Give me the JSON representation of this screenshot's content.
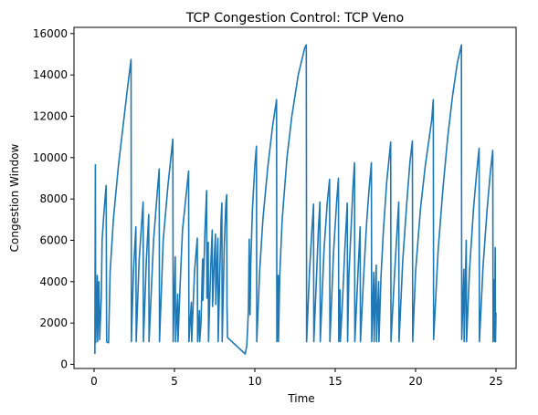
{
  "chart_data": {
    "type": "line",
    "title": "TCP Congestion Control: TCP Veno",
    "xlabel": "Time",
    "ylabel": "Congestion Window",
    "xlim": [
      -1.25,
      26.25
    ],
    "ylim": [
      -200,
      16300
    ],
    "xticks": [
      0,
      5,
      10,
      15,
      20,
      25
    ],
    "yticks": [
      0,
      2000,
      4000,
      6000,
      8000,
      10000,
      12000,
      14000,
      16000
    ],
    "xtick_labels": [
      "0",
      "5",
      "10",
      "15",
      "20",
      "25"
    ],
    "ytick_labels": [
      "0",
      "2000",
      "4000",
      "6000",
      "8000",
      "10000",
      "12000",
      "14000",
      "16000"
    ],
    "grid": false,
    "color": "#1f77b4",
    "series": [
      {
        "values": [
          [
            0.05,
            500
          ],
          [
            0.08,
            9650
          ],
          [
            0.1,
            1050
          ],
          [
            0.2,
            4300
          ],
          [
            0.22,
            1100
          ],
          [
            0.3,
            4000
          ],
          [
            0.35,
            1200
          ],
          [
            0.45,
            3300
          ],
          [
            0.5,
            6000
          ],
          [
            0.6,
            7200
          ],
          [
            0.75,
            8650
          ],
          [
            0.78,
            1100
          ],
          [
            0.85,
            1050
          ],
          [
            0.9,
            1050
          ],
          [
            1.0,
            4500
          ],
          [
            1.2,
            7000
          ],
          [
            1.5,
            9500
          ],
          [
            1.8,
            11500
          ],
          [
            2.1,
            13500
          ],
          [
            2.3,
            14750
          ],
          [
            2.32,
            1100
          ],
          [
            2.45,
            4500
          ],
          [
            2.6,
            6650
          ],
          [
            2.62,
            1100
          ],
          [
            2.8,
            5000
          ],
          [
            3.0,
            7300
          ],
          [
            3.05,
            7850
          ],
          [
            3.07,
            1100
          ],
          [
            3.25,
            5000
          ],
          [
            3.4,
            7250
          ],
          [
            3.42,
            1100
          ],
          [
            3.7,
            6000
          ],
          [
            3.95,
            8500
          ],
          [
            4.05,
            9450
          ],
          [
            4.07,
            1100
          ],
          [
            4.3,
            6000
          ],
          [
            4.6,
            8700
          ],
          [
            4.9,
            10900
          ],
          [
            4.92,
            1100
          ],
          [
            5.05,
            5200
          ],
          [
            5.07,
            1100
          ],
          [
            5.2,
            3400
          ],
          [
            5.22,
            1100
          ],
          [
            5.35,
            3800
          ],
          [
            5.5,
            6500
          ],
          [
            5.7,
            8000
          ],
          [
            5.88,
            9350
          ],
          [
            5.9,
            1100
          ],
          [
            6.05,
            3000
          ],
          [
            6.07,
            1100
          ],
          [
            6.25,
            4500
          ],
          [
            6.42,
            6100
          ],
          [
            6.44,
            1100
          ],
          [
            6.55,
            2600
          ],
          [
            6.57,
            1100
          ],
          [
            6.65,
            2000
          ],
          [
            6.75,
            5100
          ],
          [
            6.77,
            3100
          ],
          [
            6.9,
            6500
          ],
          [
            7.0,
            8400
          ],
          [
            7.02,
            3200
          ],
          [
            7.1,
            5900
          ],
          [
            7.12,
            1100
          ],
          [
            7.25,
            4600
          ],
          [
            7.35,
            6500
          ],
          [
            7.37,
            2800
          ],
          [
            7.5,
            5500
          ],
          [
            7.55,
            6300
          ],
          [
            7.57,
            2900
          ],
          [
            7.7,
            6100
          ],
          [
            7.72,
            1100
          ],
          [
            7.85,
            5400
          ],
          [
            7.9,
            7000
          ],
          [
            7.95,
            7800
          ],
          [
            7.97,
            1100
          ],
          [
            8.1,
            5800
          ],
          [
            8.2,
            7800
          ],
          [
            8.25,
            8200
          ],
          [
            8.27,
            2800
          ],
          [
            8.3,
            1300
          ],
          [
            9.4,
            500
          ],
          [
            9.5,
            900
          ],
          [
            9.6,
            2600
          ],
          [
            9.65,
            6050
          ],
          [
            9.7,
            2400
          ],
          [
            9.75,
            5000
          ],
          [
            9.85,
            7500
          ],
          [
            10.0,
            9600
          ],
          [
            10.1,
            10550
          ],
          [
            10.12,
            1100
          ],
          [
            10.3,
            4500
          ],
          [
            10.5,
            7000
          ],
          [
            10.8,
            9500
          ],
          [
            11.1,
            11500
          ],
          [
            11.35,
            12800
          ],
          [
            11.37,
            1100
          ],
          [
            11.45,
            4300
          ],
          [
            11.47,
            1100
          ],
          [
            11.55,
            4300
          ],
          [
            11.7,
            7000
          ],
          [
            12.0,
            10000
          ],
          [
            12.3,
            12000
          ],
          [
            12.7,
            14000
          ],
          [
            13.1,
            15300
          ],
          [
            13.2,
            15450
          ],
          [
            13.22,
            1100
          ],
          [
            13.4,
            4500
          ],
          [
            13.55,
            6500
          ],
          [
            13.65,
            7750
          ],
          [
            13.67,
            1100
          ],
          [
            13.85,
            4500
          ],
          [
            13.95,
            6500
          ],
          [
            14.05,
            7850
          ],
          [
            14.07,
            1100
          ],
          [
            14.3,
            5500
          ],
          [
            14.5,
            7800
          ],
          [
            14.65,
            8950
          ],
          [
            14.67,
            1100
          ],
          [
            14.9,
            5500
          ],
          [
            15.1,
            8000
          ],
          [
            15.2,
            9000
          ],
          [
            15.22,
            1100
          ],
          [
            15.3,
            3600
          ],
          [
            15.32,
            1100
          ],
          [
            15.45,
            3000
          ],
          [
            15.6,
            5600
          ],
          [
            15.75,
            7800
          ],
          [
            15.77,
            1100
          ],
          [
            15.85,
            4300
          ],
          [
            16.0,
            6800
          ],
          [
            16.1,
            8500
          ],
          [
            16.2,
            9750
          ],
          [
            16.22,
            1100
          ],
          [
            16.45,
            5000
          ],
          [
            16.55,
            6650
          ],
          [
            16.57,
            1100
          ],
          [
            16.75,
            4000
          ],
          [
            16.95,
            6800
          ],
          [
            17.1,
            8400
          ],
          [
            17.25,
            9750
          ],
          [
            17.27,
            1100
          ],
          [
            17.4,
            4450
          ],
          [
            17.42,
            1100
          ],
          [
            17.5,
            3600
          ],
          [
            17.55,
            4800
          ],
          [
            17.57,
            1100
          ],
          [
            17.7,
            4000
          ],
          [
            17.72,
            1100
          ],
          [
            17.85,
            4300
          ],
          [
            18.0,
            6500
          ],
          [
            18.2,
            8800
          ],
          [
            18.45,
            10750
          ],
          [
            18.47,
            1100
          ],
          [
            18.7,
            4500
          ],
          [
            18.85,
            6500
          ],
          [
            18.95,
            7850
          ],
          [
            18.97,
            1100
          ],
          [
            19.2,
            5000
          ],
          [
            19.45,
            7800
          ],
          [
            19.65,
            9800
          ],
          [
            19.8,
            10800
          ],
          [
            19.82,
            1100
          ],
          [
            20.0,
            4500
          ],
          [
            20.3,
            7500
          ],
          [
            20.6,
            9600
          ],
          [
            21.0,
            11800
          ],
          [
            21.1,
            12800
          ],
          [
            21.12,
            1200
          ],
          [
            21.4,
            5500
          ],
          [
            21.7,
            8500
          ],
          [
            22.0,
            11000
          ],
          [
            22.3,
            13000
          ],
          [
            22.6,
            14600
          ],
          [
            22.85,
            15450
          ],
          [
            22.87,
            1200
          ],
          [
            23.0,
            4600
          ],
          [
            23.02,
            1100
          ],
          [
            23.1,
            4200
          ],
          [
            23.15,
            6000
          ],
          [
            23.17,
            1100
          ],
          [
            23.35,
            4500
          ],
          [
            23.6,
            7500
          ],
          [
            23.8,
            9300
          ],
          [
            23.95,
            10450
          ],
          [
            23.97,
            1100
          ],
          [
            24.2,
            4800
          ],
          [
            24.45,
            7500
          ],
          [
            24.65,
            9300
          ],
          [
            24.8,
            10350
          ],
          [
            24.82,
            1100
          ],
          [
            24.9,
            4100
          ],
          [
            24.92,
            1100
          ],
          [
            24.95,
            5650
          ],
          [
            24.97,
            1100
          ],
          [
            25.0,
            2500
          ]
        ]
      }
    ]
  }
}
